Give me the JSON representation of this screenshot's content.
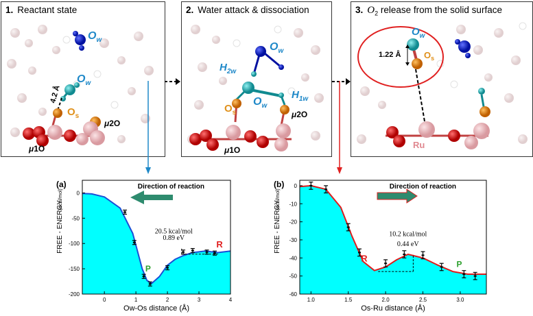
{
  "panels": [
    {
      "num": "1.",
      "title": "Reactant state",
      "labels": {
        "ow_top": "O",
        "ow_top_sub": "w",
        "ow_mid": "O",
        "ow_mid_sub": "w",
        "os": "O",
        "os_sub": "s",
        "mu2": "μ",
        "mu2_rest": "2O",
        "mu1": "μ",
        "mu1_rest": "1O",
        "dist": "4.2 Å"
      }
    },
    {
      "num": "2.",
      "title": "Water attack & dissociation",
      "labels": {
        "ow1": "O",
        "ow1_sub": "w",
        "h2w": "H",
        "h2w_sub": "2w",
        "ow2": "O",
        "ow2_sub": "w",
        "h1w": "H",
        "h1w_sub": "1w",
        "os": "O",
        "os_sub": "s",
        "mu2": "μ",
        "mu2_rest": "2O",
        "mu1": "μ",
        "mu1_rest": "1O"
      }
    },
    {
      "num": "3.",
      "title_pre": "O",
      "title_sub": "2",
      "title": " release from the solid surface",
      "labels": {
        "ow": "O",
        "ow_sub": "w",
        "os": "O",
        "os_sub": "s",
        "dist": "1.22 Å",
        "ru": "Ru"
      }
    }
  ],
  "chart_data": [
    {
      "type": "line",
      "panel_label": "(a)",
      "direction_label": "Direction of reaction",
      "xlabel": "Ow-Os distance (Å)",
      "ylabel": "FREE - ENERGY",
      "ylabel_unit": "(Kcal/mol)",
      "xlim": [
        -0.7,
        4
      ],
      "ylim": [
        -200,
        25
      ],
      "xticks": [
        0,
        1,
        2,
        3,
        4
      ],
      "yticks": [
        0,
        -50,
        -100,
        -150,
        -200
      ],
      "curve": [
        [
          -0.7,
          -1
        ],
        [
          -0.4,
          -2
        ],
        [
          0,
          -8
        ],
        [
          0.5,
          -30
        ],
        [
          0.9,
          -80
        ],
        [
          1.2,
          -150
        ],
        [
          1.35,
          -173
        ],
        [
          1.5,
          -179
        ],
        [
          1.75,
          -165
        ],
        [
          2.0,
          -143
        ],
        [
          2.25,
          -131
        ],
        [
          2.5,
          -124
        ],
        [
          2.8,
          -118
        ],
        [
          3.2,
          -115
        ],
        [
          3.6,
          -118
        ],
        [
          4.0,
          -115
        ]
      ],
      "points": [
        {
          "x": 0.65,
          "y": -38,
          "err": 3
        },
        {
          "x": 0.95,
          "y": -98,
          "err": 3
        },
        {
          "x": 1.25,
          "y": -165,
          "err": 3
        },
        {
          "x": 1.45,
          "y": -180,
          "err": 3
        },
        {
          "x": 2.0,
          "y": -148,
          "err": 3
        },
        {
          "x": 2.5,
          "y": -117,
          "err": 3
        },
        {
          "x": 2.8,
          "y": -114,
          "err": 3
        },
        {
          "x": 3.25,
          "y": -117,
          "err": 3
        },
        {
          "x": 3.5,
          "y": -119,
          "err": 3
        }
      ],
      "barrier_text": "20.5 kcal/mol",
      "barrier_ev": "0.89 eV",
      "P": "P",
      "R": "R",
      "arrow_color": "#2e8b6e",
      "fill_color": "#00ffff",
      "line_color": "#1a4fd6"
    },
    {
      "type": "line",
      "panel_label": "(b)",
      "direction_label": "Direction of reaction",
      "xlabel": "Os-Ru distance (Å)",
      "ylabel": "FREE - ENERGY",
      "ylabel_unit": "(Kcal/mol)",
      "xlim": [
        0.85,
        3.35
      ],
      "ylim": [
        -60,
        3
      ],
      "xticks": [
        1.0,
        1.5,
        2.0,
        2.5,
        3.0
      ],
      "yticks": [
        0,
        -10,
        -20,
        -30,
        -40,
        -50,
        -60
      ],
      "curve": [
        [
          0.85,
          -0.5
        ],
        [
          1.0,
          0
        ],
        [
          1.2,
          -2
        ],
        [
          1.4,
          -12
        ],
        [
          1.55,
          -28
        ],
        [
          1.7,
          -42
        ],
        [
          1.85,
          -47
        ],
        [
          2.0,
          -45
        ],
        [
          2.15,
          -41
        ],
        [
          2.3,
          -38
        ],
        [
          2.5,
          -40
        ],
        [
          2.7,
          -44
        ],
        [
          2.9,
          -47.5
        ],
        [
          3.1,
          -49
        ],
        [
          3.35,
          -49
        ]
      ],
      "points": [
        {
          "x": 1.0,
          "y": 0,
          "err": 2
        },
        {
          "x": 1.2,
          "y": -2,
          "err": 2
        },
        {
          "x": 1.5,
          "y": -23,
          "err": 2
        },
        {
          "x": 1.65,
          "y": -37,
          "err": 2
        },
        {
          "x": 2.0,
          "y": -43,
          "err": 2
        },
        {
          "x": 2.25,
          "y": -38,
          "err": 2
        },
        {
          "x": 2.5,
          "y": -38.5,
          "err": 2
        },
        {
          "x": 2.75,
          "y": -45,
          "err": 2
        },
        {
          "x": 3.05,
          "y": -49,
          "err": 2
        },
        {
          "x": 3.2,
          "y": -50,
          "err": 2
        }
      ],
      "barrier_text": "10.2 kcal/mol",
      "barrier_ev": "0.44 eV",
      "P": "P",
      "R": "R",
      "arrow_color": "#2e8b6e",
      "fill_color": "#00ffff",
      "line_color": "#e01c1c"
    }
  ],
  "colors": {
    "accent_blue": "#1e88c8",
    "accent_red": "#e02020",
    "ow_cyan": "#1aa3c8",
    "os_orange": "#e0901a"
  }
}
